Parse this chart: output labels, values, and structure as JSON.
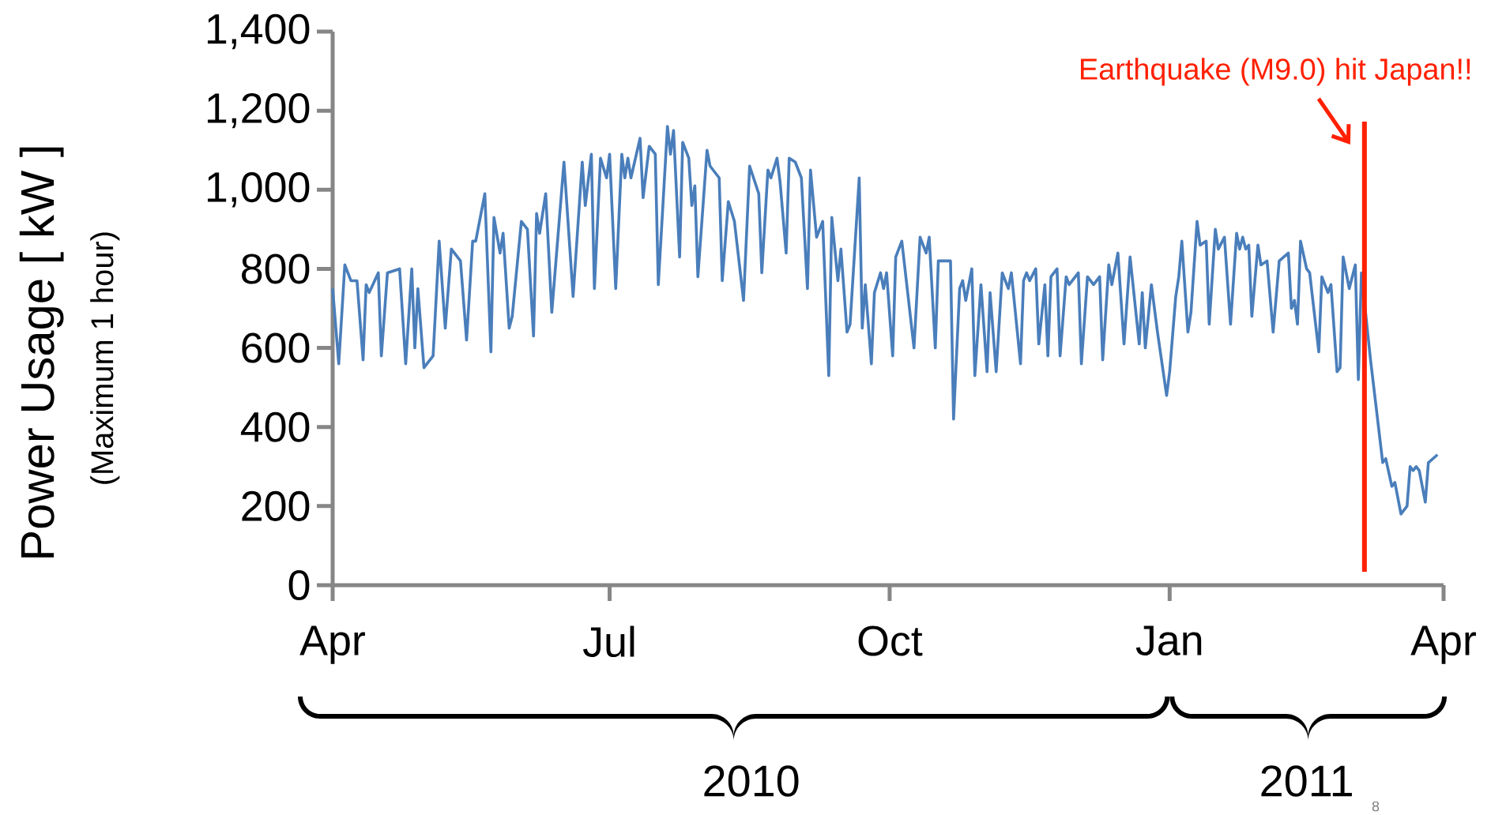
{
  "chart_data": {
    "type": "line",
    "ylabel": "Power Usage  [ kW ]",
    "annotations": [
      "(Maximum 1 hour)",
      "2010",
      "2011",
      "8"
    ],
    "xlim": [
      "2010-04-01",
      "2011-04-01"
    ],
    "xticks": [
      {
        "value": "2010-04-01",
        "label": "Apr"
      },
      {
        "value": "2010-07-01",
        "label": "Jul"
      },
      {
        "value": "2010-10-01",
        "label": "Oct"
      },
      {
        "value": "2011-01-01",
        "label": "Jan"
      },
      {
        "value": "2011-04-01",
        "label": "Apr"
      }
    ],
    "ylim": [
      0,
      1400
    ],
    "yticks": [
      0,
      200,
      400,
      600,
      800,
      {
        "value": 1000,
        "label": "1,000"
      },
      {
        "value": 1200,
        "label": "1,200"
      },
      {
        "value": 1400,
        "label": "1,400"
      }
    ],
    "ref_lines": [
      {
        "axis": "x",
        "value": "2011-03-06",
        "label": "Earthquake (M9.0) hit Japan!!",
        "color": "#ff2000"
      }
    ],
    "series": [
      {
        "color": "#4a7ebb",
        "x": [
          "2010-04-01",
          "2010-04-03",
          "2010-04-05",
          "2010-04-07",
          "2010-04-09",
          "2010-04-11",
          "2010-04-12",
          "2010-04-13",
          "2010-04-16",
          "2010-04-17",
          "2010-04-19",
          "2010-04-23",
          "2010-04-25",
          "2010-04-27",
          "2010-04-28",
          "2010-04-29",
          "2010-05-01",
          "2010-05-04",
          "2010-05-06",
          "2010-05-08",
          "2010-05-10",
          "2010-05-13",
          "2010-05-15",
          "2010-05-17",
          "2010-05-18",
          "2010-05-21",
          "2010-05-23",
          "2010-05-24",
          "2010-05-26",
          "2010-05-27",
          "2010-05-29",
          "2010-05-30",
          "2010-06-02",
          "2010-06-04",
          "2010-06-06",
          "2010-06-07",
          "2010-06-08",
          "2010-06-10",
          "2010-06-12",
          "2010-06-16",
          "2010-06-19",
          "2010-06-22",
          "2010-06-23",
          "2010-06-25",
          "2010-06-26",
          "2010-06-28",
          "2010-06-30",
          "2010-07-01",
          "2010-07-03",
          "2010-07-05",
          "2010-07-06",
          "2010-07-07",
          "2010-07-08",
          "2010-07-11",
          "2010-07-12",
          "2010-07-14",
          "2010-07-16",
          "2010-07-17",
          "2010-07-20",
          "2010-07-21",
          "2010-07-22",
          "2010-07-24",
          "2010-07-25",
          "2010-07-27",
          "2010-07-28",
          "2010-07-29",
          "2010-07-30",
          "2010-08-02",
          "2010-08-03",
          "2010-08-06",
          "2010-08-07",
          "2010-08-09",
          "2010-08-11",
          "2010-08-14",
          "2010-08-16",
          "2010-08-19",
          "2010-08-20",
          "2010-08-22",
          "2010-08-23",
          "2010-08-25",
          "2010-08-26",
          "2010-08-28",
          "2010-08-29",
          "2010-08-31",
          "2010-09-02",
          "2010-09-04",
          "2010-09-05",
          "2010-09-07",
          "2010-09-09",
          "2010-09-11",
          "2010-09-12",
          "2010-09-14",
          "2010-09-15",
          "2010-09-17",
          "2010-09-18",
          "2010-09-21",
          "2010-09-22",
          "2010-09-23",
          "2010-09-25",
          "2010-09-26",
          "2010-09-28",
          "2010-09-29",
          "2010-09-30",
          "2010-10-02",
          "2010-10-03",
          "2010-10-05",
          "2010-10-09",
          "2010-10-11",
          "2010-10-13",
          "2010-10-14",
          "2010-10-16",
          "2010-10-17",
          "2010-10-21",
          "2010-10-22",
          "2010-10-24",
          "2010-10-25",
          "2010-10-26",
          "2010-10-28",
          "2010-10-29",
          "2010-10-31",
          "2010-11-02",
          "2010-11-03",
          "2010-11-05",
          "2010-11-07",
          "2010-11-09",
          "2010-11-10",
          "2010-11-13",
          "2010-11-14",
          "2010-11-15",
          "2010-11-16",
          "2010-11-18",
          "2010-11-19",
          "2010-11-21",
          "2010-11-22",
          "2010-11-23",
          "2010-11-25",
          "2010-11-26",
          "2010-11-28",
          "2010-11-29",
          "2010-12-02",
          "2010-12-03",
          "2010-12-05",
          "2010-12-07",
          "2010-12-09",
          "2010-12-10",
          "2010-12-12",
          "2010-12-13",
          "2010-12-15",
          "2010-12-17",
          "2010-12-19",
          "2010-12-22",
          "2010-12-23",
          "2010-12-24",
          "2010-12-26",
          "2010-12-28",
          "2010-12-31",
          "2011-01-01",
          "2011-01-03",
          "2011-01-04",
          "2011-01-05",
          "2011-01-07",
          "2011-01-08",
          "2011-01-10",
          "2011-01-11",
          "2011-01-13",
          "2011-01-14",
          "2011-01-16",
          "2011-01-17",
          "2011-01-19",
          "2011-01-21",
          "2011-01-23",
          "2011-01-24",
          "2011-01-25",
          "2011-01-26",
          "2011-01-27",
          "2011-01-28",
          "2011-01-30",
          "2011-01-31",
          "2011-02-02",
          "2011-02-04",
          "2011-02-06",
          "2011-02-09",
          "2011-02-10",
          "2011-02-11",
          "2011-02-12",
          "2011-02-13",
          "2011-02-15",
          "2011-02-16",
          "2011-02-19",
          "2011-02-20",
          "2011-02-22",
          "2011-02-23",
          "2011-02-25",
          "2011-02-26",
          "2011-02-27",
          "2011-03-01",
          "2011-03-03",
          "2011-03-04",
          "2011-03-05",
          "2011-03-08",
          "2011-03-12",
          "2011-03-13",
          "2011-03-15",
          "2011-03-16",
          "2011-03-18",
          "2011-03-20",
          "2011-03-21",
          "2011-03-22",
          "2011-03-23",
          "2011-03-24",
          "2011-03-26",
          "2011-03-27",
          "2011-03-30"
        ],
        "values": [
          750,
          560,
          810,
          770,
          770,
          570,
          760,
          740,
          790,
          580,
          790,
          800,
          560,
          800,
          600,
          750,
          550,
          580,
          870,
          650,
          850,
          820,
          620,
          870,
          870,
          990,
          590,
          930,
          840,
          890,
          650,
          680,
          920,
          900,
          630,
          940,
          890,
          990,
          690,
          1070,
          730,
          1070,
          960,
          1090,
          750,
          1080,
          1030,
          1090,
          750,
          1090,
          1030,
          1080,
          1030,
          1130,
          980,
          1110,
          1090,
          760,
          1160,
          1090,
          1150,
          830,
          1120,
          1080,
          960,
          1010,
          780,
          1100,
          1060,
          1030,
          770,
          970,
          920,
          720,
          1060,
          990,
          790,
          1050,
          1030,
          1080,
          1020,
          840,
          1080,
          1070,
          1030,
          750,
          1050,
          880,
          920,
          530,
          930,
          770,
          850,
          640,
          660,
          1030,
          650,
          760,
          560,
          740,
          790,
          750,
          790,
          580,
          830,
          870,
          600,
          880,
          840,
          880,
          600,
          820,
          820,
          420,
          750,
          770,
          720,
          800,
          530,
          760,
          540,
          740,
          540,
          790,
          750,
          790,
          560,
          770,
          790,
          770,
          800,
          610,
          760,
          580,
          780,
          800,
          580,
          780,
          760,
          790,
          560,
          780,
          760,
          780,
          570,
          810,
          760,
          840,
          610,
          830,
          610,
          740,
          600,
          760,
          640,
          480,
          540,
          730,
          780,
          870,
          640,
          690,
          920,
          860,
          870,
          660,
          900,
          850,
          880,
          660,
          890,
          850,
          880,
          850,
          860,
          680,
          860,
          810,
          820,
          640,
          820,
          840,
          700,
          720,
          660,
          870,
          800,
          790,
          590,
          780,
          740,
          760,
          540,
          550,
          830,
          750,
          810,
          520,
          790,
          570,
          310,
          320,
          250,
          260,
          180,
          200,
          300,
          290,
          300,
          290,
          210,
          310,
          330
        ]
      }
    ]
  }
}
